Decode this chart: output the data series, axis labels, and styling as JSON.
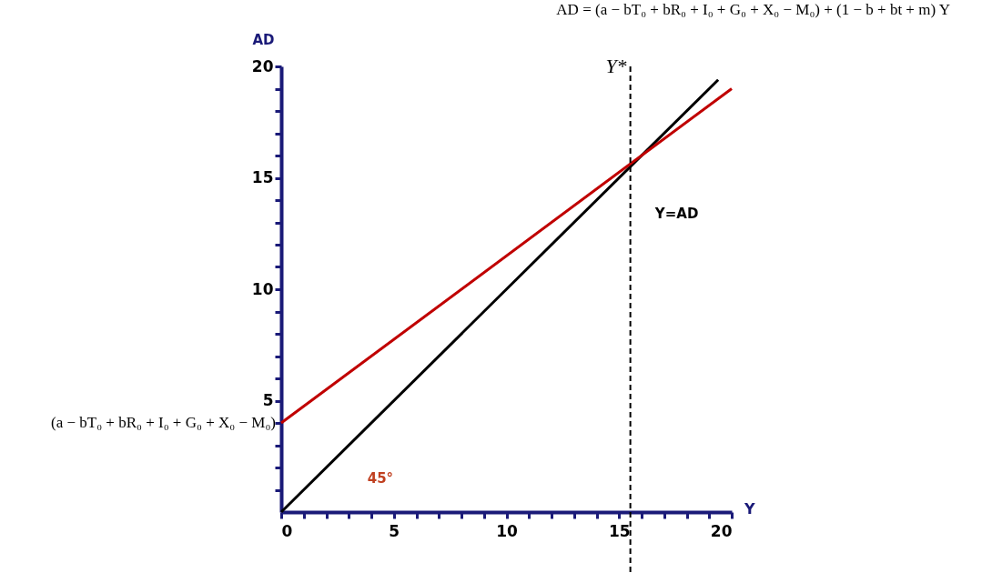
{
  "chart_data": {
    "type": "line",
    "title": "AD = (a − bT₀ + bR₀ + I₀ + G₀ + X₀ − M₀) + (1 − b + bt + m) Y",
    "xlabel": "Y",
    "ylabel": "AD",
    "series": [
      {
        "color": "#000000",
        "x": [
          0,
          19.4
        ],
        "values": [
          0,
          19.4
        ]
      },
      {
        "color": "#c00000",
        "x": [
          0,
          20
        ],
        "values": [
          4,
          19
        ]
      }
    ],
    "xlim": [
      0,
      20
    ],
    "ylim": [
      0,
      20
    ],
    "xticks": [
      0,
      {
        "value": 1,
        "label": null
      },
      {
        "value": 2,
        "label": null
      },
      {
        "value": 3,
        "label": null
      },
      {
        "value": 4,
        "label": null
      },
      5,
      {
        "value": 6,
        "label": null
      },
      {
        "value": 7,
        "label": null
      },
      {
        "value": 8,
        "label": null
      },
      {
        "value": 9,
        "label": null
      },
      10,
      {
        "value": 11,
        "label": null
      },
      {
        "value": 12,
        "label": null
      },
      {
        "value": 13,
        "label": null
      },
      {
        "value": 14,
        "label": null
      },
      15,
      {
        "value": 16,
        "label": null
      },
      {
        "value": 17,
        "label": null
      },
      {
        "value": 18,
        "label": null
      },
      {
        "value": 19,
        "label": null
      },
      20
    ],
    "yticks": [
      {
        "value": 1,
        "label": null
      },
      {
        "value": 2,
        "label": null
      },
      {
        "value": 3,
        "label": null
      },
      {
        "value": 4,
        "label": null
      },
      5,
      {
        "value": 6,
        "label": null
      },
      {
        "value": 7,
        "label": null
      },
      {
        "value": 8,
        "label": null
      },
      {
        "value": 9,
        "label": null
      },
      10,
      {
        "value": 11,
        "label": null
      },
      {
        "value": 12,
        "label": null
      },
      {
        "value": 13,
        "label": null
      },
      {
        "value": 14,
        "label": null
      },
      15,
      {
        "value": 16,
        "label": null
      },
      {
        "value": 17,
        "label": null
      },
      {
        "value": 18,
        "label": null
      },
      {
        "value": 19,
        "label": null
      },
      20
    ],
    "ref_lines": [
      {
        "axis": "x",
        "value": 15.5,
        "label": "Y*",
        "line_style": "dashed",
        "color": "#000000"
      }
    ],
    "annotations": [
      {
        "text": "(a − bT₀ + bR₀ + I₀ + G₀ + X₀ − M₀)",
        "x": 0,
        "y": 4
      },
      "Y=AD",
      "45°"
    ],
    "grid": false,
    "legend": false,
    "marker": "none",
    "line_style": "solid"
  }
}
